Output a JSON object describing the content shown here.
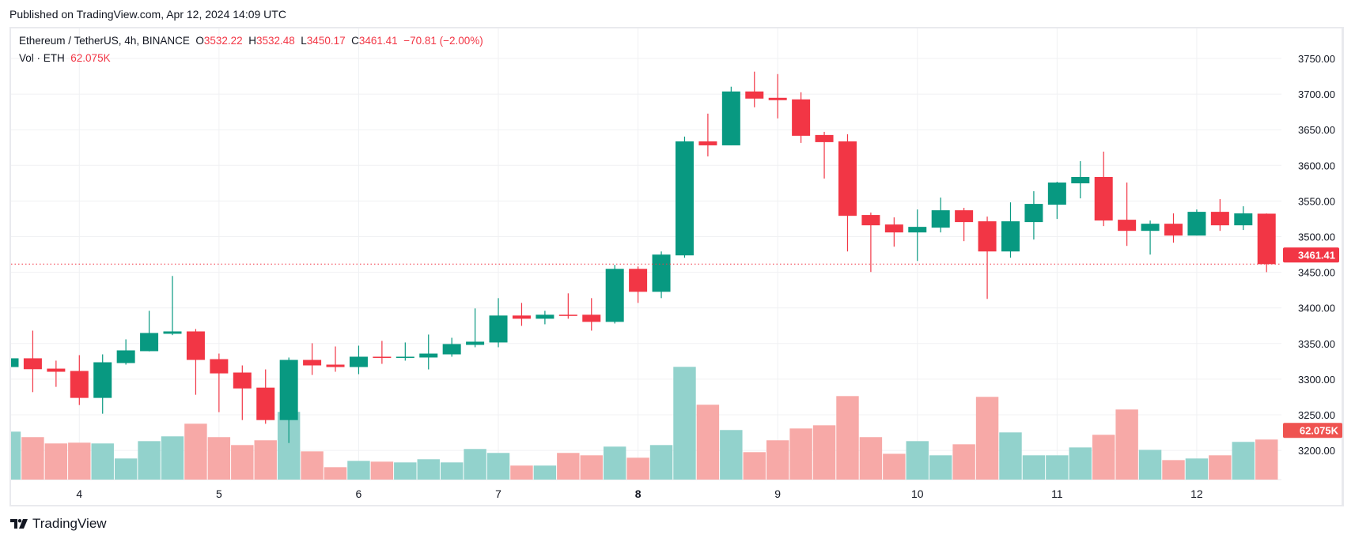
{
  "header": {
    "published": "Published on TradingView.com, Apr 12, 2024 14:09 UTC"
  },
  "legend": {
    "symbol": "Ethereum / TetherUS, 4h, BINANCE",
    "o_label": "O",
    "o": "3532.22",
    "h_label": "H",
    "h": "3532.48",
    "l_label": "L",
    "l": "3450.17",
    "c_label": "C",
    "c": "3461.41",
    "change": "−70.81 (−2.00%)",
    "vol_label": "Vol · ETH",
    "vol": "62.075K"
  },
  "logo": {
    "text": "TradingView"
  },
  "colors": {
    "up": "#089981",
    "down": "#f23645",
    "vol_up": "#92d2cc",
    "vol_down": "#f7a9a7",
    "grid": "#f0f1f3"
  },
  "chart_data": {
    "type": "candlestick",
    "title": "",
    "ylim": [
      3150,
      3790
    ],
    "y_ticks": [
      "3750.00",
      "3700.00",
      "3650.00",
      "3600.00",
      "3550.00",
      "3500.00",
      "3450.00",
      "3400.00",
      "3350.00",
      "3300.00",
      "3250.00",
      "3200.00"
    ],
    "x_ticks": [
      {
        "label": "4",
        "candle": 3
      },
      {
        "label": "5",
        "candle": 9
      },
      {
        "label": "6",
        "candle": 15
      },
      {
        "label": "7",
        "candle": 21
      },
      {
        "label": "8",
        "candle": 27,
        "bold": true
      },
      {
        "label": "9",
        "candle": 33
      },
      {
        "label": "10",
        "candle": 39
      },
      {
        "label": "11",
        "candle": 45
      },
      {
        "label": "12",
        "candle": 51
      }
    ],
    "last_price_label": "3461.41",
    "last_volume_label": "62.075K",
    "grid": true,
    "ohlc": [
      [
        3317,
        3331,
        3315,
        3329.3
      ],
      [
        3329.3,
        3368.1,
        3281.8,
        3314
      ],
      [
        3314.8,
        3326,
        3289.2,
        3310.4
      ],
      [
        3311.5,
        3333.7,
        3263.7,
        3273.7
      ],
      [
        3273.7,
        3334.8,
        3251.5,
        3323.7
      ],
      [
        3322.6,
        3355.9,
        3320.4,
        3340.4
      ],
      [
        3339.3,
        3395.9,
        3339,
        3364.8
      ],
      [
        3363.7,
        3444.8,
        3361.8,
        3367
      ],
      [
        3367,
        3370.4,
        3278.1,
        3327
      ],
      [
        3328.1,
        3335.9,
        3253.7,
        3308.1
      ],
      [
        3309.3,
        3319.3,
        3242.6,
        3287
      ],
      [
        3288.1,
        3313.7,
        3237.4,
        3242.6
      ],
      [
        3242.6,
        3330.4,
        3210.4,
        3327
      ],
      [
        3327,
        3350.4,
        3305.9,
        3319.3
      ],
      [
        3320.4,
        3345.9,
        3310.4,
        3317
      ],
      [
        3317,
        3347,
        3307,
        3331.5
      ],
      [
        3331.5,
        3353.7,
        3321.5,
        3330.4
      ],
      [
        3330.4,
        3351.5,
        3326,
        3331.5
      ],
      [
        3330.4,
        3362.6,
        3313.7,
        3335.9
      ],
      [
        3334.8,
        3358.1,
        3331.5,
        3349.3
      ],
      [
        3348.1,
        3399.3,
        3344.8,
        3352.6
      ],
      [
        3351.5,
        3413.7,
        3344.8,
        3389.3
      ],
      [
        3389.3,
        3407,
        3374.8,
        3384.8
      ],
      [
        3384.8,
        3395.9,
        3377,
        3390.4
      ],
      [
        3390.4,
        3420.4,
        3384.8,
        3389.3
      ],
      [
        3390.4,
        3413.7,
        3368.1,
        3380.4
      ],
      [
        3380.4,
        3460.4,
        3378.1,
        3454.8
      ],
      [
        3454.8,
        3458.1,
        3407,
        3422.6
      ],
      [
        3422.6,
        3479.2,
        3413.7,
        3474.8
      ],
      [
        3473.7,
        3640.4,
        3470.4,
        3633.7
      ],
      [
        3633.7,
        3672.6,
        3612.6,
        3628.1
      ],
      [
        3628.1,
        3710.4,
        3628.1,
        3703.7
      ],
      [
        3703.7,
        3731.5,
        3681.5,
        3693.7
      ],
      [
        3694.8,
        3728.1,
        3665.9,
        3691.5
      ],
      [
        3692.6,
        3702.6,
        3631.5,
        3641.5
      ],
      [
        3642.6,
        3647,
        3581.5,
        3632.6
      ],
      [
        3633.7,
        3643.7,
        3479.2,
        3529.2
      ],
      [
        3530.4,
        3533.7,
        3450.4,
        3515.9
      ],
      [
        3517,
        3527,
        3485.9,
        3505.9
      ],
      [
        3505.9,
        3538.1,
        3465.9,
        3513.7
      ],
      [
        3512.6,
        3554.8,
        3505.9,
        3537
      ],
      [
        3537,
        3540.4,
        3493.7,
        3520.4
      ],
      [
        3521.5,
        3528.1,
        3412.6,
        3479.2
      ],
      [
        3479.2,
        3548.1,
        3470.4,
        3521.5
      ],
      [
        3520.4,
        3563.7,
        3495.9,
        3545.9
      ],
      [
        3544.8,
        3577,
        3524.8,
        3575.9
      ],
      [
        3574.8,
        3605.9,
        3553.7,
        3583.7
      ],
      [
        3583.7,
        3619.3,
        3514.8,
        3522.6
      ],
      [
        3523.7,
        3575.9,
        3487,
        3508.1
      ],
      [
        3508.1,
        3522.6,
        3474.8,
        3518.1
      ],
      [
        3518.1,
        3532.6,
        3491.5,
        3501.5
      ],
      [
        3501.5,
        3538.1,
        3501.5,
        3534.8
      ],
      [
        3534.8,
        3552.6,
        3508.1,
        3515.9
      ],
      [
        3515.9,
        3542.6,
        3509.3,
        3532.6
      ],
      [
        3532.22,
        3532.48,
        3450.17,
        3461.41
      ]
    ],
    "volume_k": [
      74.3,
      65.8,
      56.0,
      57.2,
      56.0,
      32.7,
      59.6,
      67.0,
      86.6,
      65.8,
      53.5,
      60.9,
      104.9,
      43.7,
      19.2,
      29.0,
      27.8,
      26.6,
      31.5,
      26.6,
      47.4,
      41.3,
      21.7,
      21.7,
      41.3,
      37.6,
      51.1,
      33.9,
      53.5,
      174.7,
      116.0,
      76.8,
      42.5,
      60.9,
      79.2,
      84.1,
      129.4,
      65.8,
      40.0,
      59.6,
      37.6,
      54.7,
      128.2,
      73.1,
      37.6,
      37.6,
      49.8,
      69.4,
      108.6,
      46.1,
      30.2,
      32.7,
      37.6,
      58.4,
      62.075
    ]
  }
}
